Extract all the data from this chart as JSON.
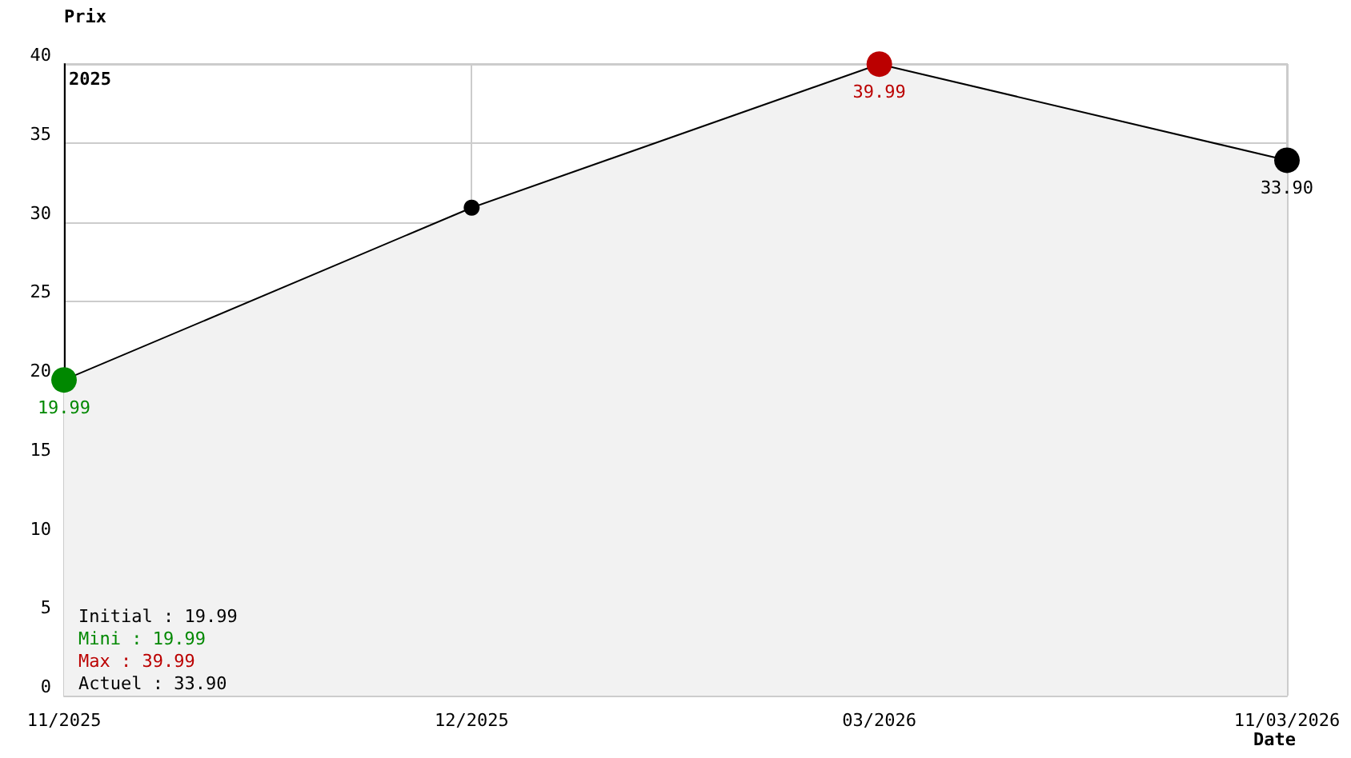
{
  "chart_data": {
    "type": "area",
    "xlabel": "Date",
    "ylabel": "Prix",
    "categories": [
      "11/2025",
      "12/2025",
      "03/2026",
      "11/03/2026"
    ],
    "series": [
      {
        "color": "#000000",
        "colors": [
          "#008800",
          "#000000",
          "#bb0000",
          "#000000"
        ],
        "values": [
          19.99,
          30.9,
          39.99,
          33.9
        ],
        "value_labels": [
          "19.99",
          null,
          "39.99",
          "33.90"
        ]
      }
    ],
    "ylim": [
      0,
      40
    ],
    "yticks": [
      0,
      5,
      10,
      15,
      20,
      25,
      30,
      35,
      40
    ],
    "grid": true,
    "marker": "circle",
    "annotations": [
      "2025",
      "Initial : 19.99",
      "Mini : 19.99",
      "Max : 39.99",
      "Actuel : 33.90"
    ]
  }
}
